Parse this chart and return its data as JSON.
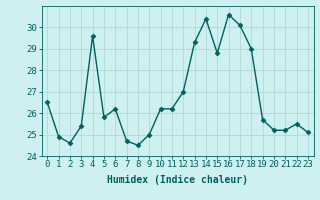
{
  "x": [
    0,
    1,
    2,
    3,
    4,
    5,
    6,
    7,
    8,
    9,
    10,
    11,
    12,
    13,
    14,
    15,
    16,
    17,
    18,
    19,
    20,
    21,
    22,
    23
  ],
  "y": [
    26.5,
    24.9,
    24.6,
    25.4,
    29.6,
    25.8,
    26.2,
    24.7,
    24.5,
    25.0,
    26.2,
    26.2,
    27.0,
    29.3,
    30.4,
    28.8,
    30.6,
    30.1,
    29.0,
    25.7,
    25.2,
    25.2,
    25.5,
    25.1
  ],
  "line_color": "#006060",
  "marker": "D",
  "marker_size": 2.5,
  "bg_color": "#cff0f0",
  "grid_color": "#b0d8d8",
  "xlabel": "Humidex (Indice chaleur)",
  "ylim": [
    24,
    31
  ],
  "yticks": [
    24,
    25,
    26,
    27,
    28,
    29,
    30
  ],
  "xticks": [
    0,
    1,
    2,
    3,
    4,
    5,
    6,
    7,
    8,
    9,
    10,
    11,
    12,
    13,
    14,
    15,
    16,
    17,
    18,
    19,
    20,
    21,
    22,
    23
  ],
  "xlabel_fontsize": 7,
  "tick_fontsize": 6.5,
  "line_width": 1.0
}
